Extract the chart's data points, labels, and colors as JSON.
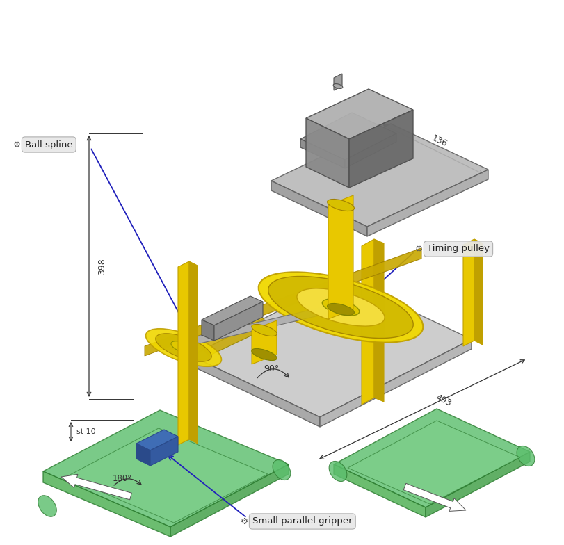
{
  "bg_color": "#ffffff",
  "fig_width": 8.12,
  "fig_height": 7.84,
  "dpi": 100,
  "labels": {
    "ball_spline": "Ball spline",
    "timing_pulley": "Timing pulley",
    "small_parallel_gripper": "Small parallel gripper"
  },
  "dimensions": {
    "d398": "398",
    "d136": "136",
    "d403": "403",
    "d90": "90°",
    "d180": "180°",
    "dst10": "st 10"
  },
  "colors": {
    "yellow": "#E8C800",
    "yellow_dark": "#C0A000",
    "green_top": "#5DBF6E",
    "green_left": "#4CAF50",
    "green_right": "#3E9E44",
    "green_inner": "#7DCF8A",
    "green_border": "#2E7D32",
    "blue_part": "#3F6DB5",
    "blue_part_dark": "#2A4A8A",
    "blue_line": "#2020BB",
    "motor_gray": "#8A8A8A",
    "motor_dark": "#6A6A6A",
    "motor_light": "#B0B0B0",
    "dim_color": "#333333",
    "label_bg": "#E8E8E8",
    "label_border": "#AAAAAA",
    "label_text": "#222222",
    "label_icon": "#555555",
    "white": "#FFFFFF"
  }
}
